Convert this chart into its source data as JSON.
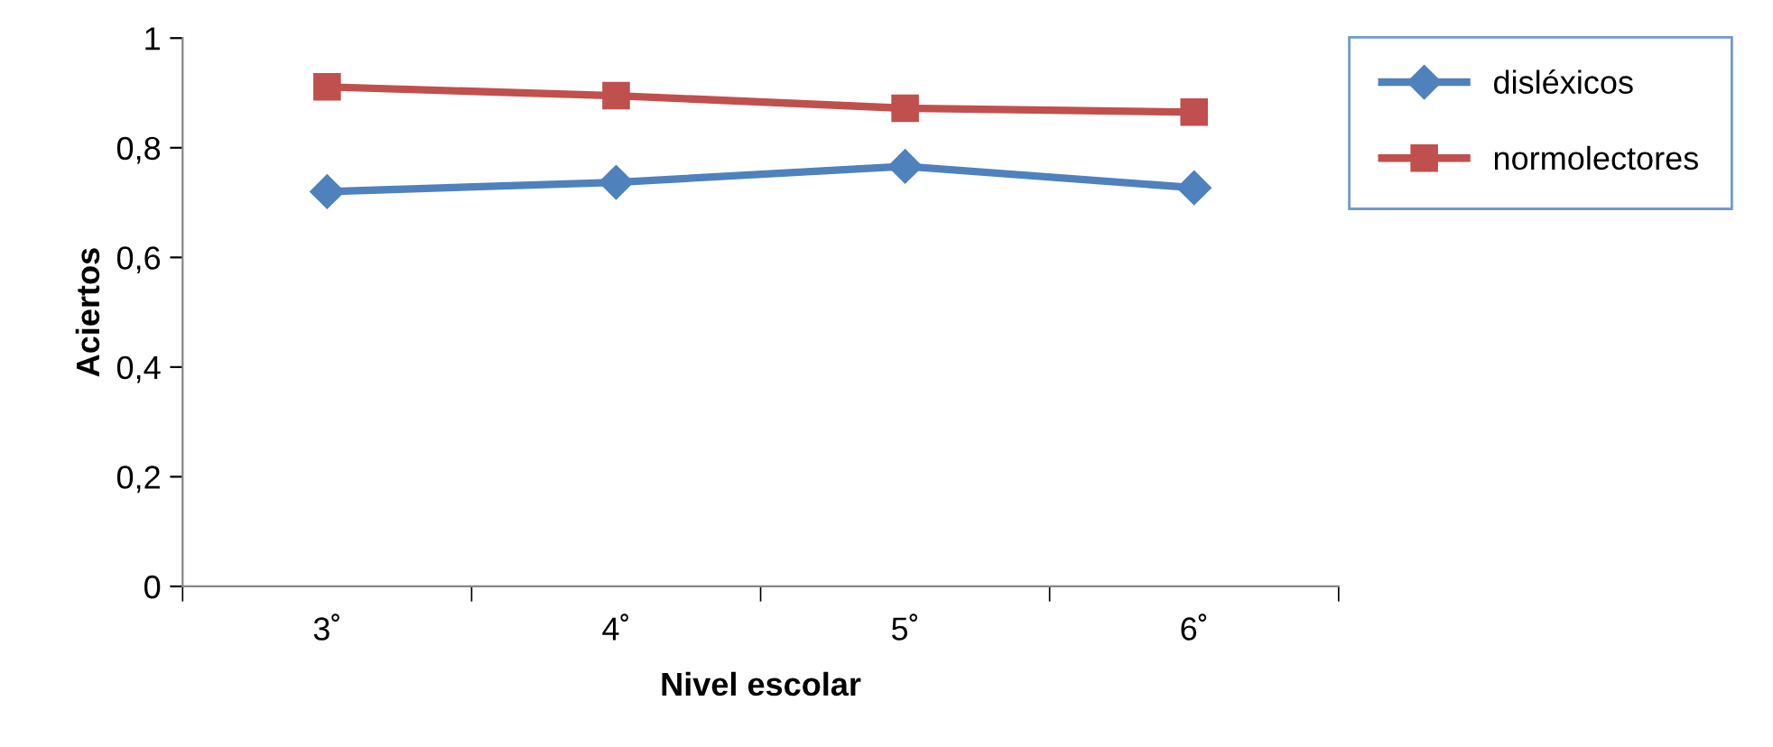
{
  "chart_data": {
    "type": "line",
    "xlabel": "Nivel escolar",
    "ylabel": "Aciertos",
    "categories": [
      "3˚",
      "4˚",
      "5˚",
      "6˚"
    ],
    "series": [
      {
        "name": "disléxicos",
        "color": "#4f81bd",
        "marker": "diamond",
        "values": [
          0.72,
          0.737,
          0.766,
          0.727
        ]
      },
      {
        "name": "normolectores",
        "color": "#c0504d",
        "marker": "square",
        "values": [
          0.911,
          0.895,
          0.872,
          0.865
        ]
      }
    ],
    "ylim": [
      0,
      1
    ],
    "yticks": [
      0,
      {
        "value": 0.2,
        "label": "0,2"
      },
      {
        "value": 0.4,
        "label": "0,4"
      },
      {
        "value": 0.6,
        "label": "0,6"
      },
      {
        "value": 0.8,
        "label": "0,8"
      },
      1
    ],
    "grid": false,
    "legend": "right",
    "line_style": "solid"
  }
}
